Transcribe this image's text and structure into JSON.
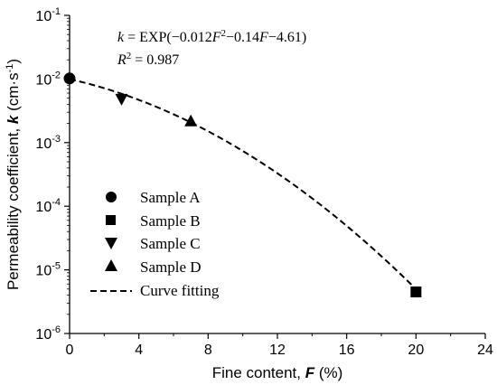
{
  "chart_data": {
    "type": "scatter",
    "x_axis": {
      "label_prefix": "Fine content,",
      "label_var": "F",
      "label_unit": "(%)",
      "ticks": [
        "0",
        "4",
        "8",
        "12",
        "16",
        "20",
        "24"
      ],
      "range": [
        0,
        24
      ]
    },
    "y_axis": {
      "label_prefix": "Permeability coefficient,",
      "label_var": "k",
      "label_unit": "(cm·s",
      "label_unit_sup": "-1",
      "label_close": ")",
      "scale": "log",
      "range": [
        1e-06,
        0.1
      ],
      "tick_base": "10",
      "tick_exponents": [
        "-6",
        "-5",
        "-4",
        "-3",
        "-2",
        "-1"
      ]
    },
    "equation": {
      "lhs": "k",
      "rhs_prefix": " = EXP(−0.012",
      "var1": "F",
      "sup": "2",
      "rhs_mid": "−0.14",
      "var2": "F",
      "rhs_end": "−4.61)",
      "r2_label": "R",
      "r2_sup": "2",
      "r2_value": " = 0.987"
    },
    "series": [
      {
        "name": "Sample A",
        "marker": "circle",
        "x": [
          0
        ],
        "y": [
          0.0102
        ]
      },
      {
        "name": "Sample B",
        "marker": "square",
        "x": [
          20
        ],
        "y": [
          4.5e-06
        ]
      },
      {
        "name": "Sample C",
        "marker": "triangle-down",
        "x": [
          3
        ],
        "y": [
          0.0048
        ]
      },
      {
        "name": "Sample D",
        "marker": "triangle-up",
        "x": [
          7
        ],
        "y": [
          0.0022
        ]
      }
    ],
    "fit": {
      "name": "Curve fitting",
      "a": -0.012,
      "b": -0.14,
      "c": -4.61,
      "x_range": [
        0,
        20
      ],
      "style": "dashed"
    },
    "legend_position": "lower-left",
    "grid": false
  }
}
